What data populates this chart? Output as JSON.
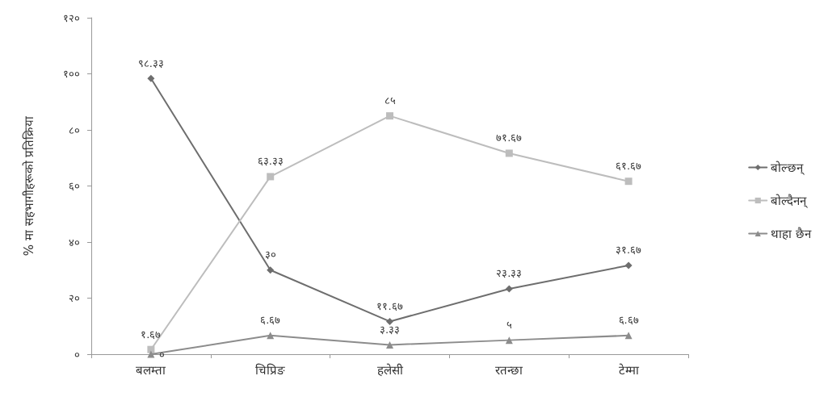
{
  "chart_data": {
    "type": "line",
    "ylabel": "% मा सहभागीहरूको प्रतिक्रिया",
    "categories": [
      "बलम्ता",
      "चिप्रिङ",
      "हलेसी",
      "रतन्छा",
      "टेम्मा"
    ],
    "series": [
      {
        "name": "बोल्छन्",
        "color": "#6e6e6e",
        "marker": "diamond",
        "values": [
          98.33,
          30,
          11.67,
          23.33,
          31.67
        ],
        "value_labels": [
          "९८.३३",
          "३०",
          "११.६७",
          "२३.३३",
          "३१.६७"
        ]
      },
      {
        "name": "बोल्दैनन्",
        "color": "#bdbdbd",
        "marker": "square",
        "values": [
          1.67,
          63.33,
          85,
          71.67,
          61.67
        ],
        "value_labels": [
          "१.६७",
          "६३.३३",
          "८५",
          "७१.६७",
          "६१.६७"
        ]
      },
      {
        "name": "थाहा छैन",
        "color": "#8c8c8c",
        "marker": "triangle",
        "values": [
          0,
          6.67,
          3.33,
          5,
          6.67
        ],
        "value_labels": [
          "०",
          "६.६७",
          "३.३३",
          "५",
          "६.६७"
        ]
      }
    ],
    "ylim": [
      0,
      120
    ],
    "yticks": [
      {
        "value": 0,
        "label": "०"
      },
      {
        "value": 20,
        "label": "२०"
      },
      {
        "value": 40,
        "label": "४०"
      },
      {
        "value": 60,
        "label": "६०"
      },
      {
        "value": 80,
        "label": "८०"
      },
      {
        "value": 100,
        "label": "१००"
      },
      {
        "value": 120,
        "label": "१२०"
      }
    ],
    "grid": false,
    "legend": "right",
    "line_style": "solid"
  }
}
